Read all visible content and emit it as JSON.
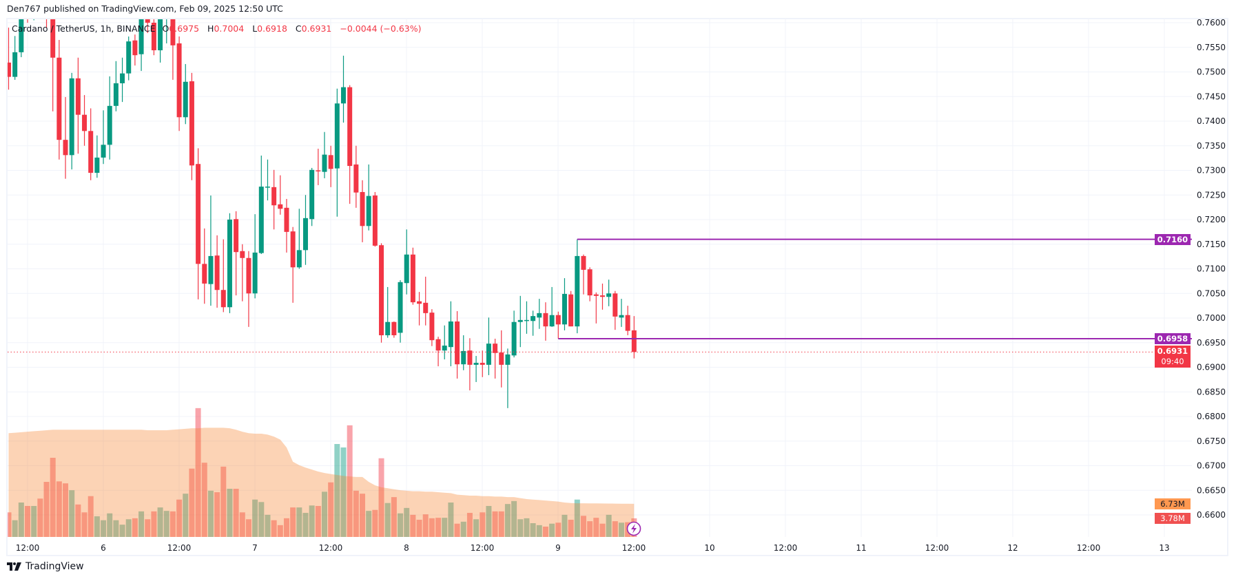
{
  "header": {
    "published_text": "Den767 published on TradingView.com, Feb 09, 2025 12:50 UTC"
  },
  "legend": {
    "symbol": "Cardano / TetherUS, 1h, BINANCE",
    "open_label": "O",
    "open": "0.6975",
    "high_label": "H",
    "high": "0.7004",
    "low_label": "L",
    "low": "0.6918",
    "close_label": "C",
    "close": "0.6931",
    "change": "−0.0044 (−0.63%)"
  },
  "price_labels": {
    "line_high": "0.7160",
    "line_low": "0.6958",
    "last_price": "0.6931",
    "countdown": "09:40",
    "volume_ma": "6.73M",
    "volume": "3.78M"
  },
  "footer": {
    "brand": "TradingView"
  },
  "colors": {
    "up": "#089981",
    "down": "#f23645",
    "hline": "#9c27b0",
    "volume_ma_area": "#f7822a",
    "volume_ma_label": "#ff9850",
    "volume_label": "#f05050",
    "grid": "#f0f3fa"
  },
  "chart_data": {
    "type": "candlestick",
    "interval": "1h",
    "y_range": [
      0.66,
      0.76
    ],
    "y_ticks": [
      "0.7600",
      "0.7550",
      "0.7500",
      "0.7450",
      "0.7400",
      "0.7350",
      "0.7300",
      "0.7250",
      "0.7200",
      "0.7150",
      "0.7100",
      "0.7050",
      "0.7000",
      "0.6950",
      "0.6900",
      "0.6850",
      "0.6800",
      "0.6750",
      "0.6700",
      "0.6650",
      "0.6600"
    ],
    "x_ticks": [
      "12:00",
      "6",
      "12:00",
      "7",
      "12:00",
      "8",
      "12:00",
      "9",
      "12:00",
      "10",
      "12:00",
      "11",
      "12:00",
      "12",
      "12:00",
      "13"
    ],
    "grid": true,
    "horizontal_lines": [
      {
        "price": 0.716,
        "from_candle": 90
      },
      {
        "price": 0.6958,
        "from_candle": 87
      }
    ],
    "last_price": 0.6931,
    "ohlc": [
      [
        0.7519,
        0.759,
        0.7464,
        0.749
      ],
      [
        0.749,
        0.7573,
        0.7484,
        0.754
      ],
      [
        0.754,
        0.764,
        0.753,
        0.7625
      ],
      [
        0.7625,
        0.765,
        0.76,
        0.761
      ],
      [
        0.761,
        0.766,
        0.7605,
        0.764
      ],
      [
        0.764,
        0.767,
        0.7615,
        0.7625
      ],
      [
        0.7625,
        0.7645,
        0.759,
        0.7618
      ],
      [
        0.7618,
        0.763,
        0.742,
        0.7529
      ],
      [
        0.7529,
        0.7565,
        0.7322,
        0.7362
      ],
      [
        0.7362,
        0.7449,
        0.7283,
        0.7331
      ],
      [
        0.7331,
        0.7498,
        0.7302,
        0.7487
      ],
      [
        0.7487,
        0.7529,
        0.7334,
        0.7413
      ],
      [
        0.7413,
        0.7453,
        0.735,
        0.738
      ],
      [
        0.738,
        0.7426,
        0.728,
        0.7295
      ],
      [
        0.7295,
        0.7371,
        0.7285,
        0.7326
      ],
      [
        0.7326,
        0.7422,
        0.7313,
        0.7352
      ],
      [
        0.7352,
        0.7491,
        0.7322,
        0.7431
      ],
      [
        0.7431,
        0.7522,
        0.742,
        0.7477
      ],
      [
        0.7477,
        0.7529,
        0.7439,
        0.7497
      ],
      [
        0.7497,
        0.7572,
        0.7483,
        0.7562
      ],
      [
        0.7564,
        0.7576,
        0.7513,
        0.7534
      ],
      [
        0.7536,
        0.764,
        0.7502,
        0.762
      ],
      [
        0.7608,
        0.7625,
        0.7579,
        0.76
      ],
      [
        0.76,
        0.7608,
        0.7534,
        0.7544
      ],
      [
        0.7544,
        0.7635,
        0.7519,
        0.7608
      ],
      [
        0.7608,
        0.766,
        0.7558,
        0.7645
      ],
      [
        0.7645,
        0.766,
        0.7484,
        0.7554
      ],
      [
        0.7558,
        0.7572,
        0.738,
        0.7408
      ],
      [
        0.7408,
        0.7516,
        0.7394,
        0.748
      ],
      [
        0.7481,
        0.7498,
        0.728,
        0.731
      ],
      [
        0.7313,
        0.7345,
        0.7038,
        0.711
      ],
      [
        0.711,
        0.7182,
        0.7029,
        0.707
      ],
      [
        0.7069,
        0.7249,
        0.7025,
        0.7126
      ],
      [
        0.7127,
        0.7168,
        0.7021,
        0.7057
      ],
      [
        0.7057,
        0.716,
        0.7012,
        0.7022
      ],
      [
        0.7022,
        0.7213,
        0.701,
        0.72
      ],
      [
        0.7201,
        0.7217,
        0.7046,
        0.7134
      ],
      [
        0.7136,
        0.715,
        0.7034,
        0.7122
      ],
      [
        0.7122,
        0.7136,
        0.6982,
        0.705
      ],
      [
        0.705,
        0.7211,
        0.704,
        0.7133
      ],
      [
        0.7132,
        0.733,
        0.713,
        0.7267
      ],
      [
        0.7266,
        0.7322,
        0.7239,
        0.7267
      ],
      [
        0.7266,
        0.7301,
        0.718,
        0.7229
      ],
      [
        0.7231,
        0.729,
        0.721,
        0.7222
      ],
      [
        0.7224,
        0.7242,
        0.7133,
        0.7175
      ],
      [
        0.7176,
        0.7185,
        0.7031,
        0.7103
      ],
      [
        0.7103,
        0.7222,
        0.71,
        0.7138
      ],
      [
        0.7138,
        0.725,
        0.7108,
        0.7203
      ],
      [
        0.7201,
        0.7305,
        0.7187,
        0.7301
      ],
      [
        0.73,
        0.7344,
        0.727,
        0.7299
      ],
      [
        0.7297,
        0.7378,
        0.7284,
        0.7332
      ],
      [
        0.7331,
        0.735,
        0.7266,
        0.7303
      ],
      [
        0.7304,
        0.7466,
        0.7206,
        0.7436
      ],
      [
        0.7436,
        0.7533,
        0.7397,
        0.7469
      ],
      [
        0.7469,
        0.7473,
        0.7232,
        0.7309
      ],
      [
        0.7312,
        0.735,
        0.7224,
        0.7255
      ],
      [
        0.7256,
        0.728,
        0.7154,
        0.7187
      ],
      [
        0.7187,
        0.7312,
        0.7178,
        0.7248
      ],
      [
        0.7249,
        0.7256,
        0.7145,
        0.7147
      ],
      [
        0.7148,
        0.7152,
        0.695,
        0.6965
      ],
      [
        0.6965,
        0.7063,
        0.696,
        0.6992
      ],
      [
        0.6992,
        0.6993,
        0.696,
        0.6965
      ],
      [
        0.697,
        0.7077,
        0.695,
        0.7073
      ],
      [
        0.7071,
        0.718,
        0.7048,
        0.7129
      ],
      [
        0.7129,
        0.7143,
        0.7027,
        0.7032
      ],
      [
        0.7034,
        0.7053,
        0.6985,
        0.7029
      ],
      [
        0.7031,
        0.7084,
        0.6985,
        0.701
      ],
      [
        0.7011,
        0.7018,
        0.6943,
        0.6955
      ],
      [
        0.6957,
        0.6962,
        0.6902,
        0.6934
      ],
      [
        0.6934,
        0.6985,
        0.6916,
        0.6944
      ],
      [
        0.6941,
        0.7034,
        0.6902,
        0.6993
      ],
      [
        0.6993,
        0.7014,
        0.6877,
        0.6906
      ],
      [
        0.6906,
        0.6965,
        0.6894,
        0.6933
      ],
      [
        0.6934,
        0.6959,
        0.6853,
        0.6905
      ],
      [
        0.6905,
        0.6923,
        0.687,
        0.6909
      ],
      [
        0.6909,
        0.6934,
        0.688,
        0.6905
      ],
      [
        0.6905,
        0.7001,
        0.6884,
        0.6948
      ],
      [
        0.6948,
        0.6958,
        0.6877,
        0.6929
      ],
      [
        0.693,
        0.6975,
        0.6859,
        0.6905
      ],
      [
        0.6905,
        0.6938,
        0.6817,
        0.6926
      ],
      [
        0.6924,
        0.7015,
        0.692,
        0.6992
      ],
      [
        0.6992,
        0.7045,
        0.6941,
        0.6996
      ],
      [
        0.6994,
        0.7034,
        0.6968,
        0.6996
      ],
      [
        0.6994,
        0.7015,
        0.6964,
        0.7004
      ],
      [
        0.7001,
        0.7039,
        0.6978,
        0.701
      ],
      [
        0.701,
        0.7032,
        0.6954,
        0.6983
      ],
      [
        0.6983,
        0.7063,
        0.6982,
        0.7006
      ],
      [
        0.7006,
        0.7013,
        0.6958,
        0.6987
      ],
      [
        0.6987,
        0.7081,
        0.6975,
        0.7049
      ],
      [
        0.7048,
        0.7055,
        0.6983,
        0.6983
      ],
      [
        0.6983,
        0.716,
        0.6969,
        0.7126
      ],
      [
        0.7126,
        0.7129,
        0.7048,
        0.7098
      ],
      [
        0.7099,
        0.7103,
        0.7034,
        0.7046
      ],
      [
        0.7048,
        0.7052,
        0.6989,
        0.7045
      ],
      [
        0.7046,
        0.707,
        0.7017,
        0.7043
      ],
      [
        0.7043,
        0.7078,
        0.7024,
        0.705
      ],
      [
        0.705,
        0.7055,
        0.6976,
        0.7003
      ],
      [
        0.7001,
        0.7039,
        0.6982,
        0.7006
      ],
      [
        0.7006,
        0.7025,
        0.6965,
        0.6974
      ],
      [
        0.6975,
        0.7004,
        0.6918,
        0.6931
      ]
    ],
    "volume_unit": "M",
    "volume": [
      5.0,
      3.4,
      7.0,
      6.3,
      6.3,
      7.8,
      11.2,
      16.1,
      11.3,
      10.9,
      9.5,
      6.6,
      5.0,
      8.3,
      4.2,
      3.4,
      4.8,
      3.4,
      2.5,
      3.6,
      3.8,
      5.2,
      3.6,
      5.2,
      6.0,
      5.3,
      5.2,
      7.6,
      8.8,
      13.9,
      26.2,
      15.1,
      9.4,
      9.1,
      14.3,
      9.8,
      9.8,
      5.0,
      3.6,
      7.6,
      7.1,
      4.5,
      3.4,
      2.4,
      3.8,
      6.0,
      6.0,
      4.9,
      6.4,
      6.3,
      9.2,
      11.1,
      18.9,
      18.2,
      22.7,
      9.4,
      8.8,
      5.3,
      5.5,
      16.0,
      6.9,
      8.1,
      4.8,
      5.9,
      4.5,
      3.5,
      4.6,
      3.8,
      3.9,
      3.9,
      7.0,
      2.7,
      3.1,
      4.9,
      3.6,
      5.0,
      6.3,
      5.2,
      5.2,
      6.7,
      7.3,
      3.6,
      3.8,
      2.8,
      2.4,
      2.1,
      2.7,
      2.9,
      4.5,
      3.5,
      7.6,
      4.3,
      3.2,
      3.9,
      2.7,
      4.5,
      3.2,
      2.9,
      3.0,
      3.78
    ],
    "volume_ma": [
      21.1,
      21.2,
      21.3,
      21.4,
      21.5,
      21.6,
      21.7,
      21.8,
      21.8,
      21.8,
      21.8,
      21.8,
      21.8,
      21.8,
      21.8,
      21.8,
      21.8,
      21.8,
      21.8,
      21.8,
      21.8,
      21.8,
      21.7,
      21.7,
      21.7,
      21.7,
      21.8,
      21.9,
      22.0,
      22.1,
      22.1,
      22.2,
      22.2,
      22.2,
      22.2,
      22.1,
      21.8,
      21.4,
      21.1,
      21.0,
      21.0,
      20.8,
      20.4,
      19.8,
      18.2,
      15.3,
      14.6,
      14.1,
      13.7,
      13.3,
      13.0,
      12.8,
      12.6,
      12.4,
      12.3,
      12.2,
      12.2,
      11.2,
      10.5,
      10.1,
      9.9,
      9.7,
      9.5,
      9.4,
      9.3,
      9.3,
      9.2,
      9.2,
      9.1,
      9.0,
      8.9,
      8.6,
      8.5,
      8.4,
      8.4,
      8.3,
      8.3,
      8.2,
      8.2,
      8.1,
      8.1,
      7.9,
      7.7,
      7.6,
      7.5,
      7.4,
      7.3,
      7.2,
      7.0,
      6.9,
      6.85,
      6.84,
      6.83,
      6.82,
      6.81,
      6.79,
      6.78,
      6.76,
      6.75,
      6.73
    ]
  }
}
